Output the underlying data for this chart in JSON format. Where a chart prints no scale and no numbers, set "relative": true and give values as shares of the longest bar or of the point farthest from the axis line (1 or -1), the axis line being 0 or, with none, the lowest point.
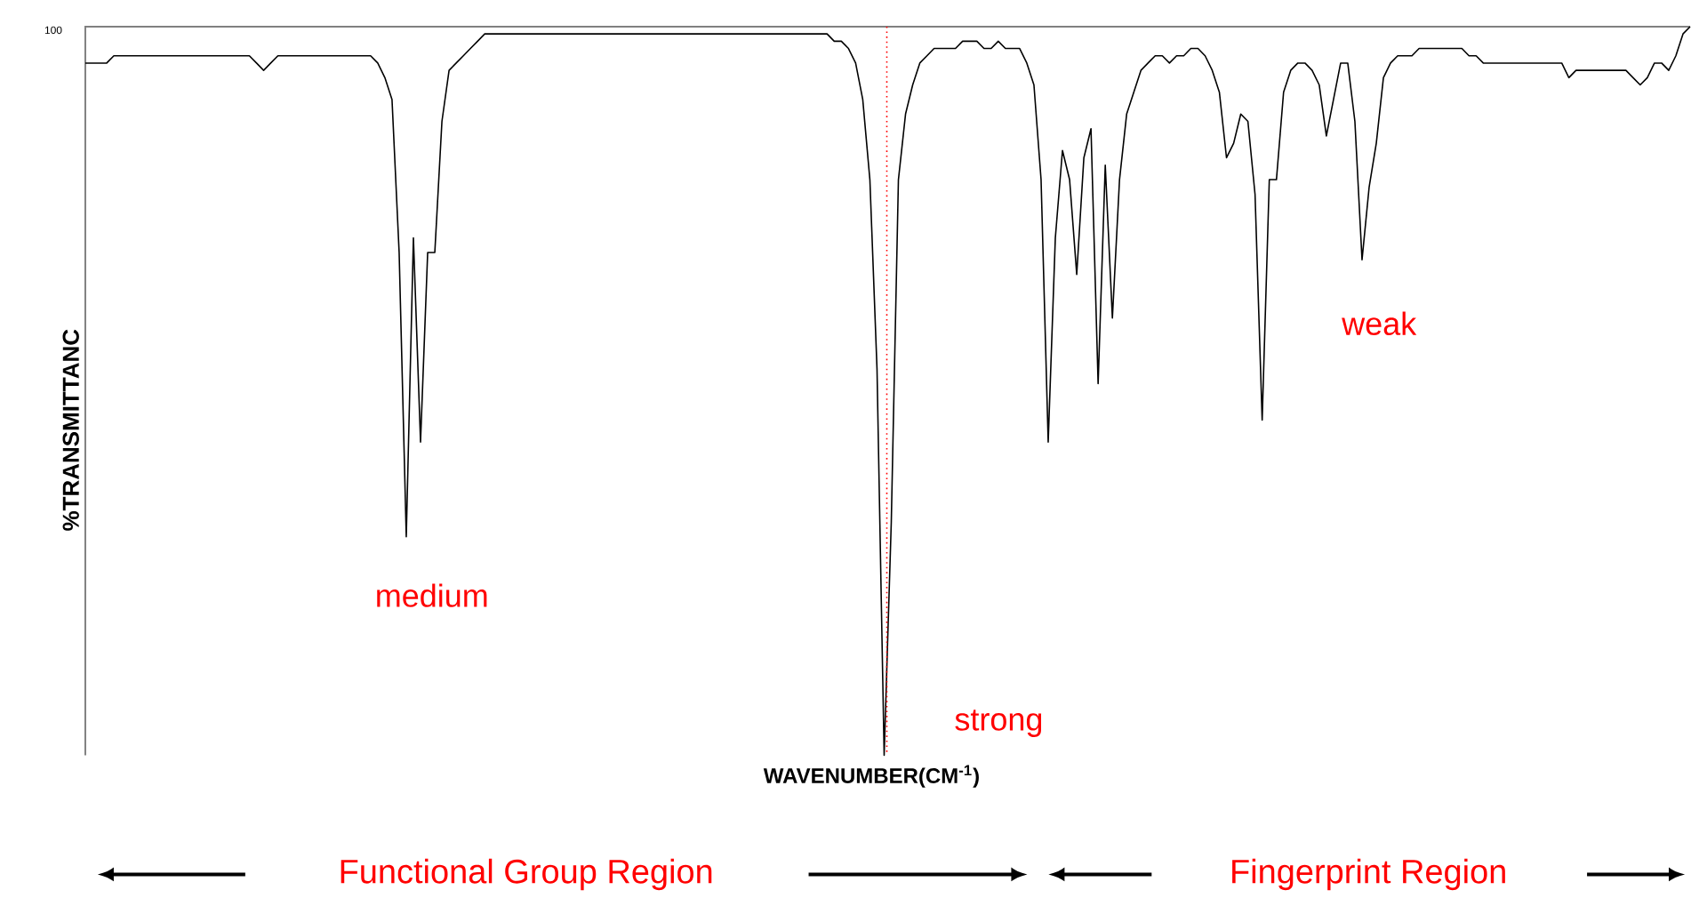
{
  "chart_data": {
    "type": "line",
    "relative": true,
    "color": "#000000",
    "line_style": "solid",
    "marker": "none",
    "xlabel": "WAVENUMBER(CM$^{-1}$)",
    "ylabel": "%TRANSMITTANC",
    "annotations": [
      "100",
      "medium",
      "strong",
      "weak",
      "Functional Group Region",
      "Fingerprint Region"
    ],
    "categories": [
      null,
      null,
      null,
      null,
      null,
      null,
      null,
      null,
      null,
      null,
      null,
      null,
      null,
      null,
      null,
      null,
      null,
      null,
      null,
      null,
      null,
      null,
      null,
      null,
      null,
      null,
      null,
      null,
      null,
      null,
      null,
      null,
      null,
      null,
      null,
      null,
      null,
      null,
      null,
      null,
      null,
      null,
      null,
      null,
      null,
      null,
      null,
      null,
      null,
      null,
      null,
      null,
      null,
      null,
      null,
      null,
      null,
      null,
      null,
      null,
      null,
      null,
      null,
      null,
      null,
      null,
      null,
      null,
      null,
      null,
      null,
      null,
      null,
      null,
      null,
      null,
      null,
      null,
      null,
      null,
      null,
      null,
      null,
      null,
      null,
      null,
      null,
      null,
      null,
      null,
      null,
      null,
      null,
      null,
      null,
      null,
      null,
      null,
      null,
      null,
      null,
      null,
      null,
      null,
      null,
      null,
      null,
      null,
      null,
      null,
      null,
      null,
      null,
      null,
      null,
      null,
      null,
      null,
      null,
      null,
      null,
      null,
      null,
      null,
      null,
      null,
      null,
      null,
      null,
      null,
      null,
      null,
      null,
      null,
      null,
      null,
      null,
      null,
      null,
      null,
      null,
      null,
      null,
      null,
      null,
      null,
      null,
      null,
      null,
      null,
      null,
      null,
      null,
      null,
      null,
      null,
      null,
      null,
      null,
      null,
      null,
      null,
      null,
      null,
      null,
      null,
      null,
      null,
      null,
      null,
      null,
      null,
      null,
      null,
      null,
      null,
      null,
      null,
      null,
      null,
      null,
      null,
      null,
      null,
      null,
      null,
      null,
      null,
      null,
      null,
      null,
      null,
      null,
      null,
      null,
      null,
      null,
      null,
      null,
      null,
      null,
      null,
      null,
      null,
      null,
      null,
      null,
      null,
      null,
      null,
      null,
      null,
      null,
      null,
      null,
      null,
      null,
      null,
      null,
      null,
      null,
      null,
      null,
      null,
      null,
      null
    ],
    "values": [
      0.95,
      0.95,
      0.95,
      0.95,
      0.96,
      0.96,
      0.96,
      0.96,
      0.96,
      0.96,
      0.96,
      0.96,
      0.96,
      0.96,
      0.96,
      0.96,
      0.96,
      0.96,
      0.96,
      0.96,
      0.96,
      0.96,
      0.96,
      0.96,
      0.95,
      0.94,
      0.95,
      0.96,
      0.96,
      0.96,
      0.96,
      0.96,
      0.96,
      0.96,
      0.96,
      0.96,
      0.96,
      0.96,
      0.96,
      0.96,
      0.96,
      0.95,
      0.93,
      0.9,
      0.69,
      0.3,
      0.71,
      0.43,
      0.69,
      0.69,
      0.87,
      0.94,
      0.95,
      0.96,
      0.97,
      0.98,
      0.99,
      0.99,
      0.99,
      0.99,
      0.99,
      0.99,
      0.99,
      0.99,
      0.99,
      0.99,
      0.99,
      0.99,
      0.99,
      0.99,
      0.99,
      0.99,
      0.99,
      0.99,
      0.99,
      0.99,
      0.99,
      0.99,
      0.99,
      0.99,
      0.99,
      0.99,
      0.99,
      0.99,
      0.99,
      0.99,
      0.99,
      0.99,
      0.99,
      0.99,
      0.99,
      0.99,
      0.99,
      0.99,
      0.99,
      0.99,
      0.99,
      0.99,
      0.99,
      0.99,
      0.99,
      0.99,
      0.99,
      0.99,
      0.99,
      0.98,
      0.98,
      0.97,
      0.95,
      0.9,
      0.79,
      0.53,
      0,
      0.32,
      0.79,
      0.88,
      0.92,
      0.95,
      0.96,
      0.97,
      0.97,
      0.97,
      0.97,
      0.98,
      0.98,
      0.98,
      0.97,
      0.97,
      0.98,
      0.97,
      0.97,
      0.97,
      0.95,
      0.92,
      0.79,
      0.43,
      0.71,
      0.83,
      0.79,
      0.66,
      0.82,
      0.86,
      0.51,
      0.81,
      0.6,
      0.79,
      0.88,
      0.91,
      0.94,
      0.95,
      0.96,
      0.96,
      0.95,
      0.96,
      0.96,
      0.97,
      0.97,
      0.96,
      0.94,
      0.91,
      0.82,
      0.84,
      0.88,
      0.87,
      0.77,
      0.46,
      0.79,
      0.79,
      0.91,
      0.94,
      0.95,
      0.95,
      0.94,
      0.92,
      0.85,
      0.9,
      0.95,
      0.95,
      0.87,
      0.68,
      0.78,
      0.84,
      0.93,
      0.95,
      0.96,
      0.96,
      0.96,
      0.97,
      0.97,
      0.97,
      0.97,
      0.97,
      0.97,
      0.97,
      0.96,
      0.96,
      0.95,
      0.95,
      0.95,
      0.95,
      0.95,
      0.95,
      0.95,
      0.95,
      0.95,
      0.95,
      0.95,
      0.95,
      0.93,
      0.94,
      0.94,
      0.94,
      0.94,
      0.94,
      0.94,
      0.94,
      0.94,
      0.93,
      0.92,
      0.93,
      0.95,
      0.95,
      0.94,
      0.96,
      0.99,
      1
    ]
  }
}
